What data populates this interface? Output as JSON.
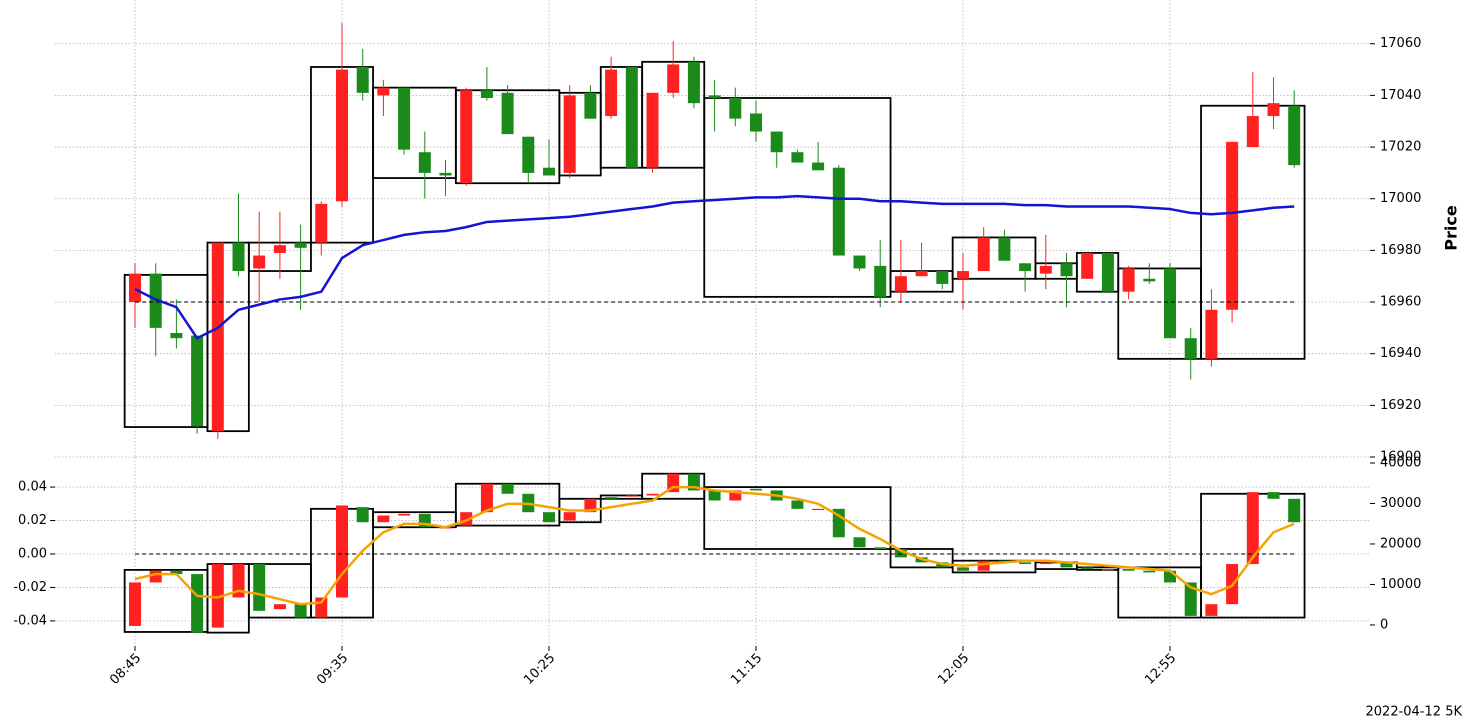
{
  "chart_data": [
    {
      "type": "candlestick",
      "ylabel": "Price",
      "up_color": "#ff2020",
      "down_color": "#1a8a1a",
      "grid": true,
      "ylim": [
        16900,
        17075
      ],
      "yticks": [
        16900,
        16920,
        16940,
        16960,
        16980,
        17000,
        17020,
        17040,
        17060
      ],
      "open": [
        16960,
        16971,
        16948,
        16947,
        16910,
        16983,
        16973,
        16979,
        16983,
        16983,
        16999,
        17051,
        17040,
        17043,
        17018,
        17010,
        17006,
        17042,
        17041,
        17024,
        17012,
        17010,
        17041,
        17032,
        17051,
        17012,
        17041,
        17053,
        17040,
        17039,
        17033,
        17026,
        17018,
        17014,
        17012,
        16978,
        16974,
        16964,
        16970,
        16972,
        16969,
        16972,
        16985,
        16975,
        16971,
        16975,
        16969,
        16979,
        16964,
        16969,
        16973,
        16946,
        16938,
        16957,
        17020,
        17032,
        17036
      ],
      "high": [
        16975,
        16975,
        16961,
        16947,
        16983,
        17002,
        16995,
        16995,
        16990,
        16999,
        17068,
        17058,
        17046,
        17043,
        17026,
        17015,
        17043,
        17051,
        17044,
        17024,
        17023,
        17044,
        17044,
        17055,
        17051,
        17041,
        17061,
        17055,
        17046,
        17043,
        17038,
        17026,
        17019,
        17022,
        17013,
        16978,
        16984,
        16984,
        16983,
        16972,
        16979,
        16989,
        16988,
        16975,
        16986,
        16979,
        16979,
        16979,
        16974,
        16975,
        16975,
        16950,
        16965,
        17022,
        17049,
        17047,
        17042
      ],
      "low": [
        16950,
        16939,
        16942,
        16909,
        16907,
        16970,
        16960,
        16969,
        16957,
        16978,
        16997,
        17038,
        17032,
        17017,
        17000,
        17001,
        17005,
        17038,
        17025,
        17006,
        17009,
        17008,
        17031,
        17031,
        17012,
        17010,
        17039,
        17035,
        17026,
        17028,
        17022,
        17012,
        17014,
        17011,
        16978,
        16972,
        16958,
        16960,
        16970,
        16965,
        16957,
        16972,
        16976,
        16964,
        16965,
        16958,
        16969,
        16964,
        16961,
        16967,
        16946,
        16930,
        16935,
        16952,
        17020,
        17027,
        17012
      ],
      "close": [
        16971,
        16950,
        16946,
        16912,
        16983,
        16972,
        16978,
        16982,
        16981,
        16998,
        17050,
        17041,
        17043,
        17019,
        17010,
        17009,
        17042,
        17039,
        17025,
        17010,
        17009,
        17040,
        17031,
        17050,
        17012,
        17041,
        17052,
        17037,
        17039,
        17031,
        17026,
        17018,
        17014,
        17011,
        16978,
        16973,
        16962,
        16970,
        16972,
        16967,
        16972,
        16985,
        16976,
        16972,
        16974,
        16970,
        16979,
        16964,
        16973,
        16968,
        16946,
        16938,
        16957,
        17022,
        17032,
        17037,
        17013
      ],
      "series": [
        {
          "color": "#1414d2",
          "values": [
            16965,
            16961,
            16958,
            16946,
            16950,
            16957,
            16959,
            16961,
            16962,
            16964,
            16977,
            16982,
            16984,
            16986,
            16987,
            16987.5,
            16989,
            16991,
            16991.5,
            16992,
            16992.5,
            16993,
            16994,
            16995,
            16996,
            16997,
            16998.5,
            16999,
            16999.5,
            17000,
            17000.5,
            17000.5,
            17001,
            17000.5,
            17000,
            17000,
            16999,
            16999,
            16998.5,
            16998,
            16998,
            16998,
            16998,
            16997.5,
            16997.5,
            16997,
            16997,
            16997,
            16997,
            16996.5,
            16996,
            16994.5,
            16994,
            16994.5,
            16995.5,
            16996.5,
            16997
          ]
        }
      ],
      "hline": 16960,
      "boxes": [
        {
          "from": 0,
          "to": 3,
          "high": 16970.5,
          "low": 16911.6
        },
        {
          "from": 4,
          "to": 5,
          "high": 16983,
          "low": 16910
        },
        {
          "from": 6,
          "to": 8,
          "high": 16983,
          "low": 16972
        },
        {
          "from": 9,
          "to": 11,
          "high": 17051,
          "low": 16983
        },
        {
          "from": 12,
          "to": 15,
          "high": 17043,
          "low": 17008
        },
        {
          "from": 16,
          "to": 20,
          "high": 17042,
          "low": 17006
        },
        {
          "from": 21,
          "to": 22,
          "high": 17041,
          "low": 17009
        },
        {
          "from": 23,
          "to": 24,
          "high": 17051,
          "low": 17012
        },
        {
          "from": 25,
          "to": 27,
          "high": 17053,
          "low": 17012
        },
        {
          "from": 28,
          "to": 36,
          "high": 17039,
          "low": 16962
        },
        {
          "from": 37,
          "to": 39,
          "high": 16972,
          "low": 16964
        },
        {
          "from": 40,
          "to": 43,
          "high": 16985,
          "low": 16969
        },
        {
          "from": 44,
          "to": 45,
          "high": 16975,
          "low": 16969
        },
        {
          "from": 46,
          "to": 47,
          "high": 16979,
          "low": 16964
        },
        {
          "from": 48,
          "to": 51,
          "high": 16973,
          "low": 16938
        },
        {
          "from": 52,
          "to": 56,
          "high": 17036,
          "low": 16938
        }
      ]
    },
    {
      "type": "candlestick",
      "up_color": "#ff2020",
      "down_color": "#1a8a1a",
      "grid": true,
      "categories": [
        "08:45",
        null,
        null,
        null,
        null,
        null,
        null,
        null,
        null,
        null,
        "09:35",
        null,
        null,
        null,
        null,
        null,
        null,
        null,
        null,
        null,
        "10:25",
        null,
        null,
        null,
        null,
        null,
        null,
        null,
        null,
        null,
        "11:15",
        null,
        null,
        null,
        null,
        null,
        null,
        null,
        null,
        null,
        "12:05",
        null,
        null,
        null,
        null,
        null,
        null,
        null,
        null,
        null,
        "12:55",
        null,
        null,
        null,
        null,
        null,
        null
      ],
      "ylim": [
        -0.055,
        0.055
      ],
      "yticks": [
        -0.04,
        -0.02,
        {
          "value": 0,
          "label": "0.00"
        },
        0.02,
        0.04
      ],
      "y2lim": [
        -5200,
        40250
      ],
      "y2ticks": [
        0,
        10000,
        20000,
        30000,
        40000
      ],
      "open": [
        -0.043,
        -0.017,
        -0.01,
        -0.012,
        -0.044,
        -0.026,
        -0.006,
        -0.033,
        -0.03,
        -0.038,
        -0.026,
        0.028,
        0.019,
        0.023,
        0.024,
        0.016,
        0.017,
        0.025,
        0.042,
        0.036,
        0.025,
        0.02,
        0.025,
        0.034,
        0.035,
        0.035,
        0.037,
        0.048,
        0.038,
        0.032,
        0.039,
        0.038,
        0.032,
        0.027,
        0.027,
        0.01,
        0.004,
        0.003,
        -0.002,
        -0.005,
        -0.008,
        -0.01,
        -0.004,
        -0.005,
        -0.006,
        -0.005,
        -0.008,
        -0.009,
        -0.009,
        -0.01,
        -0.01,
        -0.017,
        -0.037,
        -0.03,
        -0.006,
        0.037,
        0.033
      ],
      "close": [
        -0.017,
        -0.01,
        -0.012,
        -0.047,
        -0.006,
        -0.006,
        -0.034,
        -0.03,
        -0.038,
        -0.026,
        0.029,
        0.019,
        0.023,
        0.024,
        0.016,
        0.016,
        0.025,
        0.042,
        0.036,
        0.025,
        0.019,
        0.025,
        0.033,
        0.033,
        0.035,
        0.036,
        0.048,
        0.038,
        0.032,
        0.038,
        0.038,
        0.032,
        0.027,
        0.027,
        0.01,
        0.004,
        0.003,
        -0.002,
        -0.005,
        -0.008,
        -0.01,
        -0.004,
        -0.005,
        -0.006,
        -0.005,
        -0.008,
        -0.009,
        -0.009,
        -0.01,
        -0.011,
        -0.017,
        -0.037,
        -0.03,
        -0.006,
        0.037,
        0.033,
        0.019
      ],
      "series": [
        {
          "color": "#f5a300",
          "values": [
            -0.015,
            -0.012,
            -0.012,
            -0.025,
            -0.026,
            -0.022,
            -0.024,
            -0.027,
            -0.03,
            -0.029,
            -0.012,
            0.002,
            0.013,
            0.018,
            0.018,
            0.016,
            0.02,
            0.026,
            0.03,
            0.03,
            0.028,
            0.026,
            0.026,
            0.028,
            0.03,
            0.032,
            0.04,
            0.04,
            0.038,
            0.037,
            0.036,
            0.035,
            0.033,
            0.03,
            0.023,
            0.015,
            0.009,
            0.002,
            -0.003,
            -0.006,
            -0.007,
            -0.006,
            -0.005,
            -0.004,
            -0.004,
            -0.005,
            -0.006,
            -0.007,
            -0.008,
            -0.009,
            -0.01,
            -0.02,
            -0.024,
            -0.019,
            -0.002,
            0.013,
            0.018
          ]
        }
      ],
      "hline": 0,
      "boxes": [
        {
          "from": 0,
          "to": 3,
          "high": -0.0095,
          "low": -0.0466
        },
        {
          "from": 4,
          "to": 5,
          "high": -0.006,
          "low": -0.047
        },
        {
          "from": 6,
          "to": 8,
          "high": -0.006,
          "low": -0.038
        },
        {
          "from": 9,
          "to": 11,
          "high": 0.027,
          "low": -0.038
        },
        {
          "from": 12,
          "to": 15,
          "high": 0.025,
          "low": 0.016
        },
        {
          "from": 16,
          "to": 20,
          "high": 0.042,
          "low": 0.017
        },
        {
          "from": 21,
          "to": 22,
          "high": 0.033,
          "low": 0.019
        },
        {
          "from": 23,
          "to": 24,
          "high": 0.035,
          "low": 0.033
        },
        {
          "from": 25,
          "to": 27,
          "high": 0.048,
          "low": 0.033
        },
        {
          "from": 28,
          "to": 36,
          "high": 0.04,
          "low": 0.003
        },
        {
          "from": 37,
          "to": 39,
          "high": 0.003,
          "low": -0.008
        },
        {
          "from": 40,
          "to": 43,
          "high": -0.004,
          "low": -0.011
        },
        {
          "from": 44,
          "to": 45,
          "high": -0.005,
          "low": -0.009
        },
        {
          "from": 46,
          "to": 47,
          "high": -0.008,
          "low": -0.0095
        },
        {
          "from": 48,
          "to": 51,
          "high": -0.008,
          "low": -0.038
        },
        {
          "from": 52,
          "to": 56,
          "high": 0.036,
          "low": -0.038
        }
      ]
    }
  ],
  "footer": "2022-04-12 5K"
}
